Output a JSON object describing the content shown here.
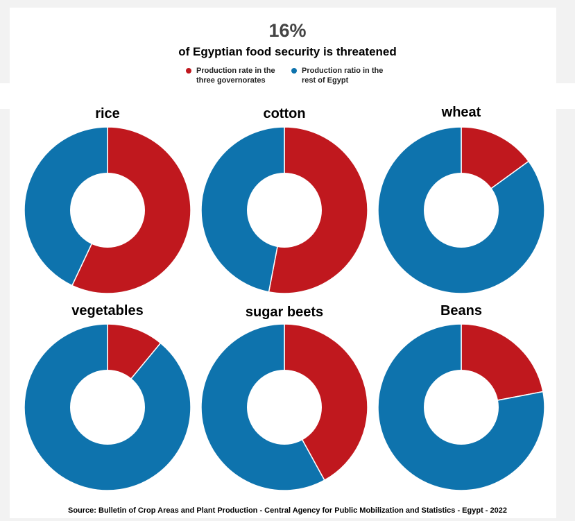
{
  "header": {
    "headline": "16%",
    "subtitle": "of Egyptian food security is threatened"
  },
  "legend": [
    {
      "label": "Production rate in the three governorates",
      "color": "#c0181e"
    },
    {
      "label": "Production ratio in the rest of Egypt",
      "color": "#0e73ad"
    }
  ],
  "chart_data": [
    {
      "type": "pie",
      "title": "rice",
      "categories": [
        "Production rate in the three governorates",
        "Production ratio in the rest of Egypt"
      ],
      "values": [
        57,
        43
      ]
    },
    {
      "type": "pie",
      "title": "cotton",
      "categories": [
        "Production rate in the three governorates",
        "Production ratio in the rest of Egypt"
      ],
      "values": [
        53,
        47
      ]
    },
    {
      "type": "pie",
      "title": "wheat",
      "categories": [
        "Production rate in the three governorates",
        "Production ratio in the rest of Egypt"
      ],
      "values": [
        15,
        85
      ]
    },
    {
      "type": "pie",
      "title": "vegetables",
      "categories": [
        "Production rate in the three governorates",
        "Production ratio in the rest of Egypt"
      ],
      "values": [
        11,
        89
      ]
    },
    {
      "type": "pie",
      "title": "sugar beets",
      "categories": [
        "Production rate in the three governorates",
        "Production ratio in the rest of Egypt"
      ],
      "values": [
        42,
        58
      ]
    },
    {
      "type": "pie",
      "title": "Beans",
      "categories": [
        "Production rate in the three governorates",
        "Production ratio in the rest of Egypt"
      ],
      "values": [
        22,
        78
      ]
    }
  ],
  "source": "Source: Bulletin of Crop Areas and Plant Production - Central Agency for Public Mobilization and Statistics - Egypt - 2022"
}
